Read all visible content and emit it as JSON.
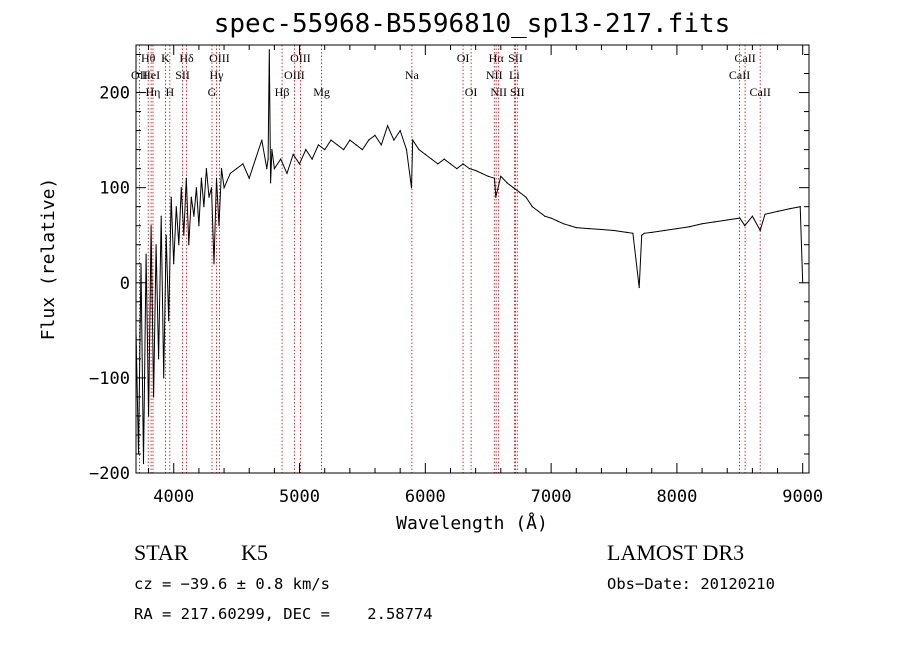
{
  "chart_data": {
    "type": "line",
    "title": "spec-55968-B5596810_sp13-217.fits",
    "xlabel": "Wavelength (Å)",
    "ylabel": "Flux (relative)",
    "xlim": [
      3700,
      9050
    ],
    "ylim": [
      -200,
      250
    ],
    "xticks": [
      4000,
      5000,
      6000,
      7000,
      8000,
      9000
    ],
    "xtick_labels": [
      "4000",
      "5000",
      "6000",
      "7000",
      "8000",
      "9000"
    ],
    "yticks": [
      -200,
      -100,
      0,
      100,
      200
    ],
    "ytick_labels": [
      "−200",
      "−100",
      "0",
      "100",
      "200"
    ],
    "grid": false,
    "series": [
      {
        "name": "flux",
        "x": [
          3700,
          3720,
          3740,
          3760,
          3780,
          3800,
          3820,
          3840,
          3860,
          3880,
          3900,
          3920,
          3940,
          3960,
          3980,
          4000,
          4020,
          4040,
          4060,
          4080,
          4100,
          4120,
          4140,
          4160,
          4180,
          4200,
          4220,
          4240,
          4260,
          4280,
          4300,
          4320,
          4340,
          4360,
          4380,
          4400,
          4450,
          4500,
          4550,
          4600,
          4650,
          4700,
          4740,
          4750,
          4760,
          4770,
          4780,
          4800,
          4850,
          4900,
          4950,
          5000,
          5050,
          5100,
          5150,
          5200,
          5250,
          5300,
          5350,
          5400,
          5450,
          5500,
          5550,
          5600,
          5650,
          5700,
          5750,
          5800,
          5850,
          5890,
          5900,
          5950,
          6000,
          6050,
          6100,
          6150,
          6200,
          6250,
          6300,
          6350,
          6400,
          6450,
          6500,
          6550,
          6560,
          6600,
          6650,
          6700,
          6750,
          6800,
          6850,
          6900,
          6950,
          7000,
          7050,
          7100,
          7150,
          7200,
          7300,
          7400,
          7500,
          7600,
          7650,
          7700,
          7720,
          7740,
          7800,
          7900,
          8000,
          8100,
          8200,
          8300,
          8400,
          8500,
          8540,
          8600,
          8662,
          8700,
          8800,
          8900,
          8980,
          9000
        ],
        "values": [
          -50,
          -180,
          20,
          -190,
          30,
          -140,
          60,
          -120,
          40,
          -80,
          70,
          -100,
          50,
          -40,
          90,
          20,
          80,
          40,
          100,
          50,
          110,
          40,
          90,
          70,
          100,
          60,
          110,
          80,
          120,
          90,
          100,
          20,
          110,
          60,
          120,
          100,
          115,
          120,
          125,
          110,
          130,
          150,
          120,
          130,
          245,
          105,
          140,
          120,
          130,
          115,
          135,
          125,
          140,
          130,
          145,
          140,
          150,
          145,
          140,
          150,
          145,
          140,
          150,
          155,
          145,
          165,
          150,
          160,
          140,
          100,
          150,
          140,
          135,
          130,
          125,
          130,
          125,
          120,
          125,
          120,
          118,
          115,
          112,
          110,
          90,
          112,
          105,
          100,
          95,
          90,
          80,
          75,
          70,
          68,
          65,
          62,
          60,
          58,
          57,
          56,
          55,
          53,
          52,
          -5,
          50,
          52,
          53,
          55,
          57,
          59,
          62,
          64,
          66,
          68,
          60,
          70,
          55,
          72,
          75,
          78,
          80,
          0
        ]
      }
    ],
    "line_labels": [
      {
        "label": "Hθ",
        "x": 3797,
        "row": 1
      },
      {
        "label": "OII",
        "x": 3727,
        "row": 2
      },
      {
        "label": "HeI",
        "x": 3820,
        "row": 2
      },
      {
        "label": "Hη",
        "x": 3835,
        "row": 3
      },
      {
        "label": "K",
        "x": 3934,
        "row": 1
      },
      {
        "label": "H",
        "x": 3969,
        "row": 3
      },
      {
        "label": "SII",
        "x": 4070,
        "row": 2
      },
      {
        "label": "Hδ",
        "x": 4102,
        "row": 1
      },
      {
        "label": "OIII",
        "x": 4363,
        "row": 1
      },
      {
        "label": "Hγ",
        "x": 4340,
        "row": 2
      },
      {
        "label": "G",
        "x": 4304,
        "row": 3
      },
      {
        "label": "Hβ",
        "x": 4861,
        "row": 3
      },
      {
        "label": "OIII",
        "x": 5007,
        "row": 1
      },
      {
        "label": "OIII",
        "x": 4959,
        "row": 2
      },
      {
        "label": "Mg",
        "x": 5175,
        "row": 3
      },
      {
        "label": "Na",
        "x": 5893,
        "row": 2
      },
      {
        "label": "OI",
        "x": 6300,
        "row": 1
      },
      {
        "label": "OI",
        "x": 6364,
        "row": 3
      },
      {
        "label": "Hα",
        "x": 6563,
        "row": 1
      },
      {
        "label": "SII",
        "x": 6717,
        "row": 1
      },
      {
        "label": "NII",
        "x": 6548,
        "row": 2
      },
      {
        "label": "Li",
        "x": 6708,
        "row": 2
      },
      {
        "label": "NII",
        "x": 6583,
        "row": 3
      },
      {
        "label": "SII",
        "x": 6731,
        "row": 3
      },
      {
        "label": "CaII",
        "x": 8542,
        "row": 1
      },
      {
        "label": "CaII",
        "x": 8498,
        "row": 2
      },
      {
        "label": "CaII",
        "x": 8662,
        "row": 3
      }
    ],
    "line_marker_color": "#cc0000"
  },
  "info": {
    "object_class": "STAR",
    "subclass": "K5",
    "survey": "LAMOST DR3",
    "cz": "cz = −39.6 ± 0.8 km/s",
    "obs_date": "Obs−Date: 20120210",
    "coords": "RA = 217.60299, DEC =    2.58774"
  }
}
